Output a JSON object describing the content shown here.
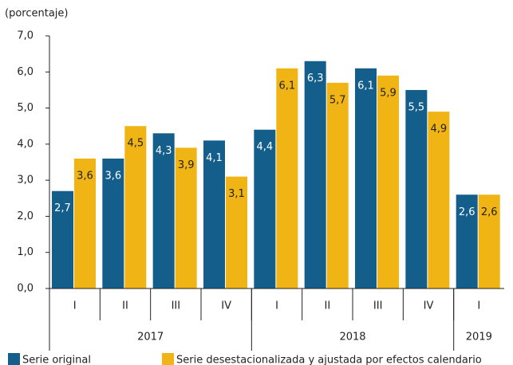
{
  "chart_data": {
    "type": "bar",
    "axis_label": "(porcentaje)",
    "categories": [
      "I",
      "II",
      "III",
      "IV",
      "I",
      "II",
      "III",
      "IV",
      "I"
    ],
    "groups": [
      {
        "label": "2017",
        "count": 4
      },
      {
        "label": "2018",
        "count": 4
      },
      {
        "label": "2019",
        "count": 1
      }
    ],
    "series": [
      {
        "name": "Serie original",
        "color": "#145e8c",
        "values": [
          2.7,
          3.6,
          4.3,
          4.1,
          4.4,
          6.3,
          6.1,
          5.5,
          2.6
        ],
        "value_labels": [
          "2,7",
          "3,6",
          "4,3",
          "4,1",
          "4,4",
          "6,3",
          "6,1",
          "5,5",
          "2,6"
        ]
      },
      {
        "name": "Serie desestacionalizada y ajustada por efectos calendario",
        "color": "#f0b414",
        "values": [
          3.6,
          4.5,
          3.9,
          3.1,
          6.1,
          5.7,
          5.9,
          4.9,
          2.6
        ],
        "value_labels": [
          "3,6",
          "4,5",
          "3,9",
          "3,1",
          "6,1",
          "5,7",
          "5,9",
          "4,9",
          "2,6"
        ]
      }
    ],
    "ylim": [
      0,
      7
    ],
    "yticks": [
      {
        "value": 0,
        "label": "0,0"
      },
      {
        "value": 1,
        "label": "1,0"
      },
      {
        "value": 2,
        "label": "2,0"
      },
      {
        "value": 3,
        "label": "3,0"
      },
      {
        "value": 4,
        "label": "4,0"
      },
      {
        "value": 5,
        "label": "5,0"
      },
      {
        "value": 6,
        "label": "6,0"
      },
      {
        "value": 7,
        "label": "7,0"
      }
    ],
    "grid": false
  }
}
